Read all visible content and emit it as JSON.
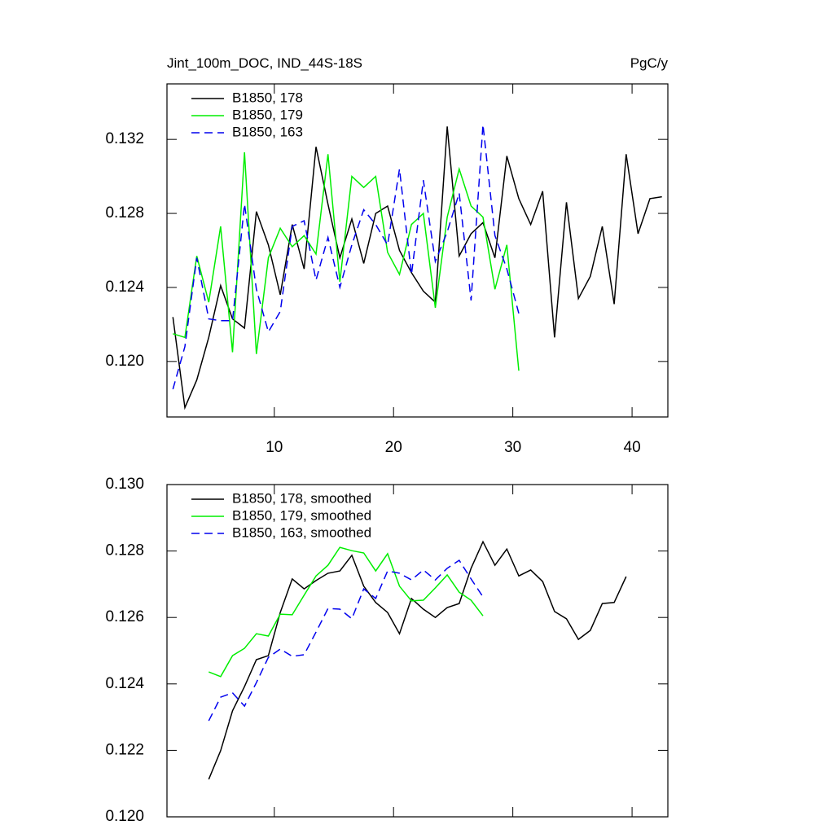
{
  "chart_data": [
    {
      "type": "line",
      "title": "Jint_100m_DOC, IND_44S-18S",
      "units": "PgC/y",
      "xlim": [
        1,
        43
      ],
      "xticks": [
        10,
        20,
        30,
        40
      ],
      "xtick_labels": true,
      "ylim": [
        0.117,
        0.135
      ],
      "yticks": [
        {
          "value": 0.12,
          "label": "0.120"
        },
        0.124,
        0.128,
        0.132
      ],
      "series": [
        {
          "name": "B1850, 178",
          "color": "#000000",
          "dash": false,
          "x": [
            1.5,
            2.5,
            3.5,
            4.5,
            5.5,
            6.5,
            7.5,
            8.5,
            9.5,
            10.5,
            11.5,
            12.5,
            13.5,
            14.5,
            15.5,
            16.5,
            17.5,
            18.5,
            19.5,
            20.5,
            21.5,
            22.5,
            23.5,
            24.5,
            25.5,
            26.5,
            27.5,
            28.5,
            29.5,
            30.5,
            31.5,
            32.5,
            33.5,
            34.5,
            35.5,
            36.5,
            37.5,
            38.5,
            39.5,
            40.5,
            41.5,
            42.5
          ],
          "values": [
            0.1224,
            0.1175,
            0.119,
            0.1213,
            0.1241,
            0.1223,
            0.1218,
            0.1281,
            0.1263,
            0.1236,
            0.1274,
            0.125,
            0.1316,
            0.1285,
            0.1256,
            0.1277,
            0.1253,
            0.128,
            0.1284,
            0.126,
            0.1248,
            0.1238,
            0.1232,
            0.1327,
            0.1257,
            0.1269,
            0.1275,
            0.1256,
            0.1311,
            0.1288,
            0.1274,
            0.1292,
            0.1213,
            0.1286,
            0.1234,
            0.1246,
            0.1273,
            0.1231,
            0.1312,
            0.1269,
            0.1288,
            0.1289
          ]
        },
        {
          "name": "B1850, 179",
          "color": "#00ee00",
          "dash": false,
          "x": [
            1.5,
            2.5,
            3.5,
            4.5,
            5.5,
            6.5,
            7.5,
            8.5,
            9.5,
            10.5,
            11.5,
            12.5,
            13.5,
            14.5,
            15.5,
            16.5,
            17.5,
            18.5,
            19.5,
            20.5,
            21.5,
            22.5,
            23.5,
            24.5,
            25.5,
            26.5,
            27.5,
            28.5,
            29.5,
            30.5
          ],
          "values": [
            0.1215,
            0.1213,
            0.1257,
            0.1232,
            0.1273,
            0.1205,
            0.1313,
            0.1204,
            0.1256,
            0.1272,
            0.1262,
            0.1268,
            0.1258,
            0.1312,
            0.1243,
            0.13,
            0.1294,
            0.13,
            0.1259,
            0.1247,
            0.1274,
            0.128,
            0.1229,
            0.1278,
            0.1304,
            0.1284,
            0.1278,
            0.1239,
            0.1263,
            0.1195
          ]
        },
        {
          "name": "B1850, 163",
          "color": "#0000ee",
          "dash": true,
          "x": [
            1.5,
            2.5,
            3.5,
            4.5,
            5.5,
            6.5,
            7.5,
            8.5,
            9.5,
            10.5,
            11.5,
            12.5,
            13.5,
            14.5,
            15.5,
            16.5,
            17.5,
            18.5,
            19.5,
            20.5,
            21.5,
            22.5,
            23.5,
            24.5,
            25.5,
            26.5,
            27.5,
            28.5,
            29.5,
            30.5
          ],
          "values": [
            0.1185,
            0.1208,
            0.1256,
            0.1223,
            0.1222,
            0.1222,
            0.1285,
            0.1239,
            0.1216,
            0.1227,
            0.1273,
            0.1276,
            0.1244,
            0.1267,
            0.124,
            0.1263,
            0.1282,
            0.1274,
            0.1263,
            0.1304,
            0.1247,
            0.1298,
            0.1254,
            0.127,
            0.1291,
            0.1233,
            0.1328,
            0.1268,
            0.125,
            0.1226
          ]
        }
      ]
    },
    {
      "type": "line",
      "xlim": [
        1,
        43
      ],
      "xticks": [
        10,
        20,
        30,
        40
      ],
      "xtick_labels": false,
      "ylim": [
        0.12,
        0.13
      ],
      "yticks": [
        {
          "value": 0.12,
          "label": "0.120"
        },
        0.122,
        0.124,
        0.126,
        0.128,
        {
          "value": 0.13,
          "label": "0.130"
        }
      ],
      "series": [
        {
          "name": "B1850, 178, smoothed",
          "color": "#000000",
          "dash": false,
          "x": [
            4.5,
            5.5,
            6.5,
            7.5,
            8.5,
            9.5,
            10.5,
            11.5,
            12.5,
            13.5,
            14.5,
            15.5,
            16.5,
            17.5,
            18.5,
            19.5,
            20.5,
            21.5,
            22.5,
            23.5,
            24.5,
            25.5,
            26.5,
            27.5,
            28.5,
            29.5,
            30.5,
            31.5,
            32.5,
            33.5,
            34.5,
            35.5,
            36.5,
            37.5,
            38.5,
            39.5
          ],
          "values": [
            0.12113,
            0.12199,
            0.12319,
            0.12392,
            0.12473,
            0.12485,
            0.12615,
            0.12716,
            0.12686,
            0.12711,
            0.12733,
            0.1274,
            0.12787,
            0.12694,
            0.12645,
            0.12615,
            0.12551,
            0.12657,
            0.12625,
            0.126,
            0.1263,
            0.12642,
            0.12748,
            0.12828,
            0.12757,
            0.12806,
            0.12725,
            0.12743,
            0.12708,
            0.12618,
            0.12596,
            0.12534,
            0.12561,
            0.12642,
            0.12645,
            0.12723
          ]
        },
        {
          "name": "B1850, 179, smoothed",
          "color": "#00ee00",
          "dash": false,
          "x": [
            4.5,
            5.5,
            6.5,
            7.5,
            8.5,
            9.5,
            10.5,
            11.5,
            12.5,
            13.5,
            14.5,
            15.5,
            16.5,
            17.5,
            18.5,
            19.5,
            20.5,
            21.5,
            22.5,
            23.5,
            24.5,
            25.5,
            26.5,
            27.5
          ],
          "values": [
            0.12436,
            0.12422,
            0.12485,
            0.12507,
            0.12551,
            0.12544,
            0.1261,
            0.12608,
            0.12667,
            0.12725,
            0.12757,
            0.12811,
            0.12801,
            0.12794,
            0.1274,
            0.12792,
            0.12694,
            0.1265,
            0.12652,
            0.12689,
            0.12728,
            0.12676,
            0.12652,
            0.12605
          ]
        },
        {
          "name": "B1850, 163, smoothed",
          "color": "#0000ee",
          "dash": true,
          "x": [
            4.5,
            5.5,
            6.5,
            7.5,
            8.5,
            9.5,
            10.5,
            11.5,
            12.5,
            13.5,
            14.5,
            15.5,
            16.5,
            17.5,
            18.5,
            19.5,
            20.5,
            21.5,
            22.5,
            23.5,
            24.5,
            25.5,
            26.5,
            27.5
          ],
          "values": [
            0.12289,
            0.1236,
            0.12373,
            0.12333,
            0.12404,
            0.1248,
            0.12505,
            0.12483,
            0.12488,
            0.12556,
            0.12627,
            0.12625,
            0.12596,
            0.12686,
            0.12657,
            0.1274,
            0.12733,
            0.12713,
            0.12743,
            0.12713,
            0.12748,
            0.12772,
            0.12716,
            0.12662
          ]
        }
      ]
    }
  ]
}
